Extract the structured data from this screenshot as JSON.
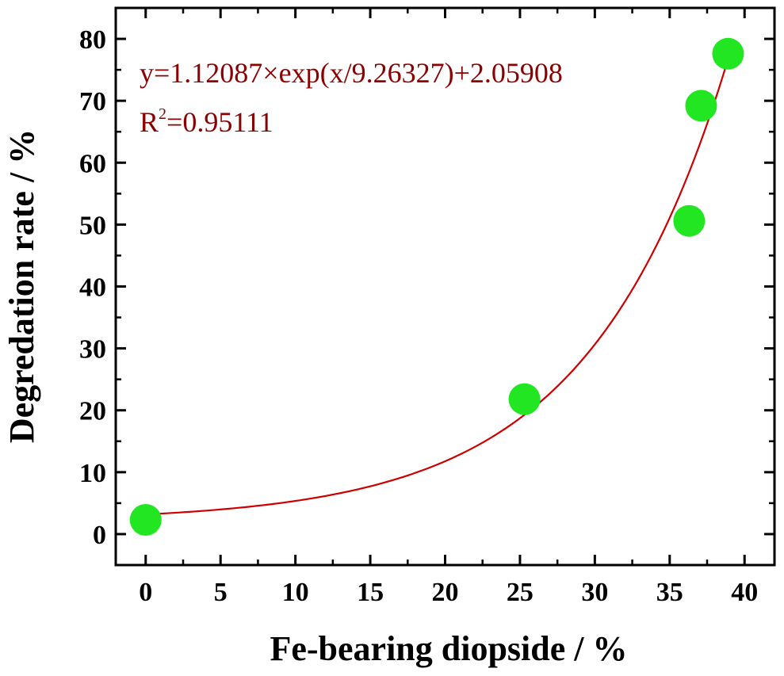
{
  "chart_data": {
    "type": "scatter",
    "xlabel": "Fe-bearing diopside / %",
    "ylabel": "Degredation rate / %",
    "xlim": [
      -2,
      42
    ],
    "ylim": [
      -5,
      85
    ],
    "x_ticks": [
      0,
      5,
      10,
      15,
      20,
      25,
      30,
      35,
      40
    ],
    "y_ticks": [
      0,
      10,
      20,
      30,
      40,
      50,
      60,
      70,
      80
    ],
    "x_tick_labels": [
      "0",
      "5",
      "10",
      "15",
      "20",
      "25",
      "30",
      "35",
      "40"
    ],
    "y_tick_labels": [
      "0",
      "10",
      "20",
      "30",
      "40",
      "50",
      "60",
      "70",
      "80"
    ],
    "points": [
      {
        "x": 0,
        "y": 2.3
      },
      {
        "x": 25.3,
        "y": 21.8
      },
      {
        "x": 36.3,
        "y": 50.6
      },
      {
        "x": 37.1,
        "y": 69.2
      },
      {
        "x": 38.9,
        "y": 77.6
      }
    ],
    "fit": {
      "model": "exponential",
      "A": 1.12087,
      "t": 9.26327,
      "y0": 2.05908,
      "x_range": [
        0,
        38.9
      ],
      "equation_label": "y=1.12087×exp(x/9.26327)+2.05908",
      "r2_prefix": "R",
      "r2_sup": "2",
      "r2_value": "=0.95111"
    },
    "colors": {
      "points": "#22e622",
      "fit_line": "#cc0000",
      "annotation": "#8b0000",
      "axes": "#000000"
    },
    "grid": false,
    "legend": "none"
  }
}
